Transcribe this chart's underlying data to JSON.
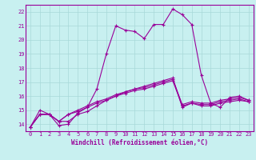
{
  "xlabel": "Windchill (Refroidissement éolien,°C)",
  "bg_color": "#c8f0f0",
  "grid_color": "#a8d8d8",
  "line_color": "#990099",
  "x": [
    0,
    1,
    2,
    3,
    4,
    5,
    6,
    7,
    8,
    9,
    10,
    11,
    12,
    13,
    14,
    15,
    16,
    17,
    18,
    19,
    20,
    21,
    22,
    23
  ],
  "lines": [
    [
      13.8,
      15.0,
      14.7,
      13.9,
      14.0,
      14.8,
      15.2,
      16.5,
      19.0,
      21.0,
      20.7,
      20.6,
      20.1,
      21.1,
      21.1,
      22.2,
      21.8,
      21.1,
      17.5,
      15.5,
      15.2,
      15.9,
      16.0,
      15.7
    ],
    [
      13.8,
      14.7,
      14.7,
      14.2,
      14.2,
      14.7,
      14.9,
      15.3,
      15.7,
      16.0,
      16.3,
      16.5,
      16.7,
      16.9,
      17.1,
      17.3,
      15.2,
      15.5,
      15.3,
      15.3,
      15.5,
      15.6,
      15.7,
      15.6
    ],
    [
      13.8,
      14.7,
      14.7,
      14.2,
      14.7,
      14.9,
      15.2,
      15.5,
      15.7,
      16.0,
      16.2,
      16.4,
      16.5,
      16.7,
      16.9,
      17.1,
      15.3,
      15.5,
      15.4,
      15.4,
      15.6,
      15.7,
      15.8,
      15.6
    ],
    [
      13.8,
      14.7,
      14.7,
      14.2,
      14.7,
      15.0,
      15.3,
      15.6,
      15.8,
      16.1,
      16.3,
      16.5,
      16.6,
      16.8,
      17.0,
      17.2,
      15.4,
      15.6,
      15.5,
      15.5,
      15.7,
      15.8,
      15.9,
      15.7
    ]
  ],
  "ylim": [
    13.5,
    22.5
  ],
  "yticks": [
    14,
    15,
    16,
    17,
    18,
    19,
    20,
    21,
    22
  ],
  "xlim": [
    -0.5,
    23.5
  ],
  "xticks": [
    0,
    1,
    2,
    3,
    4,
    5,
    6,
    7,
    8,
    9,
    10,
    11,
    12,
    13,
    14,
    15,
    16,
    17,
    18,
    19,
    20,
    21,
    22,
    23
  ],
  "xlabel_fontsize": 5.5,
  "tick_fontsize": 5.0,
  "linewidth": 0.8,
  "markersize": 2.5
}
